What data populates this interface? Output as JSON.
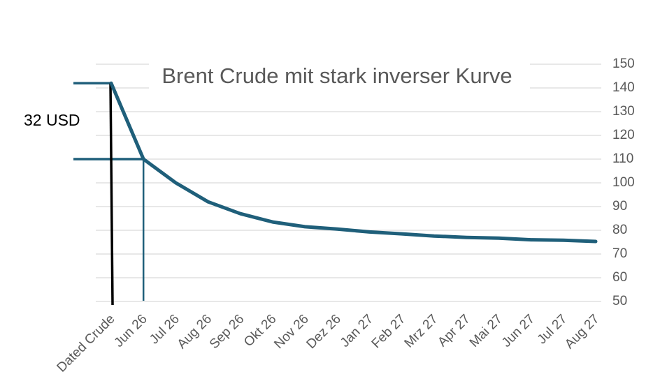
{
  "chart_data": {
    "type": "line",
    "title": "Brent Crude mit stark inverser Kurve",
    "xlabel": "",
    "ylabel": "",
    "categories": [
      "Dated Crude",
      "Jun 26",
      "Jul 26",
      "Aug 26",
      "Sep 26",
      "Okt 26",
      "Nov 26",
      "Dez 26",
      "Jan 27",
      "Feb 27",
      "Mrz 27",
      "Apr 27",
      "Mai 27",
      "Jun 27",
      "Jul 27",
      "Aug 27"
    ],
    "series": [
      {
        "values": [
          142,
          110,
          100,
          92,
          87,
          83.5,
          81.5,
          80.5,
          79.3,
          78.5,
          77.6,
          77,
          76.7,
          76,
          75.8,
          75.3
        ]
      }
    ],
    "y_ticks": [
      "50",
      "60",
      "70",
      "80",
      "90",
      "100",
      "110",
      "120",
      "130",
      "140",
      "150"
    ],
    "ylim": [
      50,
      150
    ],
    "y_axis_side": "right",
    "grid": true,
    "annotations": [
      {
        "text": "32 USD",
        "from_value": 142,
        "to_value": 110
      }
    ],
    "colors": {
      "line": "#1f5f7a",
      "grid": "#d9d9d9",
      "marker_black": "#000000"
    }
  }
}
